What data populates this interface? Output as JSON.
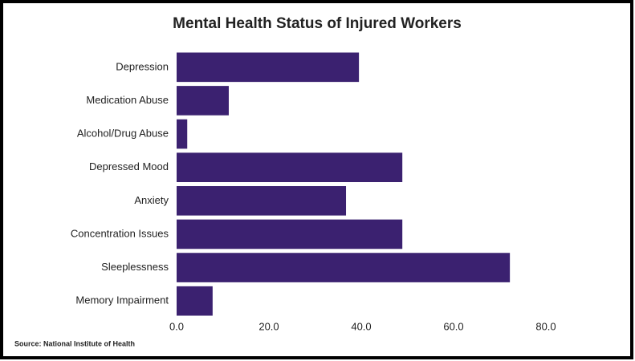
{
  "chart_data": {
    "type": "bar",
    "orientation": "horizontal",
    "title": "Mental Health Status of Injured Workers",
    "source": "Source: National Institute of Health",
    "categories": [
      "Depression",
      "Medication Abuse",
      "Alcohol/Drug Abuse",
      "Depressed Mood",
      "Anxiety",
      "Concentration Issues",
      "Sleeplessness",
      "Memory Impairment"
    ],
    "values": [
      39.5,
      11.3,
      2.3,
      48.9,
      36.7,
      48.9,
      72.2,
      7.8
    ],
    "color": "#3b2170",
    "xlim": [
      0,
      90
    ],
    "xticks": [
      {
        "value": 0,
        "label": "0.0"
      },
      {
        "value": 20,
        "label": "20.0"
      },
      {
        "value": 40,
        "label": "40.0"
      },
      {
        "value": 60,
        "label": "60.0"
      },
      {
        "value": 80,
        "label": "80.0"
      }
    ],
    "grid": false
  }
}
